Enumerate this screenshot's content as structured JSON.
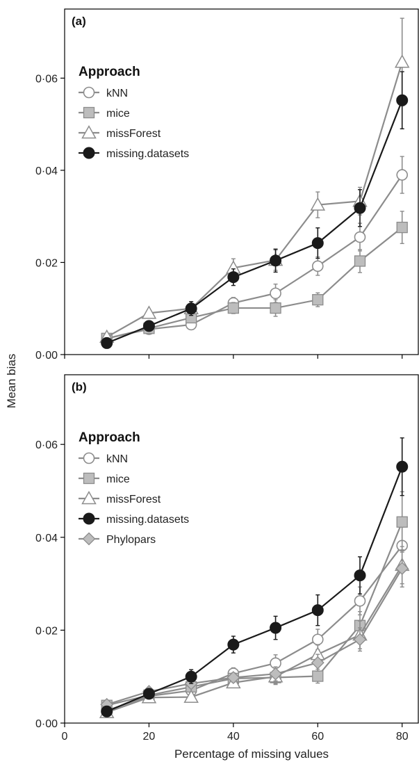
{
  "figure": {
    "ylabel": "Mean bias",
    "xlabel": "Percentage of missing values"
  },
  "chart_data": [
    {
      "type": "line",
      "panel_label": "(a)",
      "legend_title": "Approach",
      "legend_position": "top-left",
      "x": [
        10,
        20,
        30,
        40,
        50,
        60,
        70,
        80
      ],
      "xticks": [
        "0",
        "20",
        "40",
        "60",
        "80"
      ],
      "yticks": [
        "0·00",
        "0·02",
        "0·04",
        "0·06"
      ],
      "xlim": [
        0,
        84
      ],
      "ylim": [
        0,
        0.075
      ],
      "grid": false,
      "series": [
        {
          "name": "kNN",
          "marker": "circle-open",
          "color": "#8c8c8c",
          "values": [
            0.0035,
            0.0055,
            0.0065,
            0.0112,
            0.0133,
            0.0192,
            0.0255,
            0.039
          ],
          "errors": [
            0.0003,
            0.0005,
            0.0006,
            0.0012,
            0.002,
            0.002,
            0.003,
            0.004
          ]
        },
        {
          "name": "mice",
          "marker": "square",
          "color": "#8c8c8c",
          "values": [
            0.0035,
            0.0057,
            0.008,
            0.0101,
            0.0101,
            0.0119,
            0.0203,
            0.0276
          ],
          "errors": [
            0.0003,
            0.0005,
            0.0008,
            0.0012,
            0.0018,
            0.0015,
            0.0025,
            0.0035
          ]
        },
        {
          "name": "missForest",
          "marker": "triangle-open",
          "color": "#8c8c8c",
          "values": [
            0.0038,
            0.009,
            0.01,
            0.0188,
            0.0205,
            0.0325,
            0.0333,
            0.0635
          ],
          "errors": [
            0.0003,
            0.0005,
            0.0008,
            0.002,
            0.0022,
            0.0028,
            0.003,
            0.0095
          ]
        },
        {
          "name": "missing.datasets",
          "marker": "circle-filled",
          "color": "#1a1a1a",
          "values": [
            0.0025,
            0.0062,
            0.01,
            0.0168,
            0.0204,
            0.0242,
            0.0318,
            0.0552
          ],
          "errors": [
            0.0003,
            0.0005,
            0.0015,
            0.0018,
            0.0025,
            0.0033,
            0.004,
            0.0062
          ]
        }
      ]
    },
    {
      "type": "line",
      "panel_label": "(b)",
      "legend_title": "Approach",
      "legend_position": "top-left",
      "x": [
        10,
        20,
        30,
        40,
        50,
        60,
        70,
        80
      ],
      "xticks": [
        "0",
        "20",
        "40",
        "60",
        "80"
      ],
      "yticks": [
        "0·00",
        "0·02",
        "0·04",
        "0·06"
      ],
      "xlim": [
        0,
        84
      ],
      "ylim": [
        0,
        0.075
      ],
      "grid": false,
      "series": [
        {
          "name": "kNN",
          "marker": "circle-open",
          "color": "#8c8c8c",
          "values": [
            0.0027,
            0.0058,
            0.007,
            0.0107,
            0.0129,
            0.018,
            0.0263,
            0.0382
          ],
          "errors": [
            0.0003,
            0.0006,
            0.0008,
            0.0012,
            0.0018,
            0.0022,
            0.003,
            0.004
          ]
        },
        {
          "name": "mice",
          "marker": "square",
          "color": "#8c8c8c",
          "values": [
            0.0038,
            0.006,
            0.0078,
            0.0096,
            0.0098,
            0.0101,
            0.021,
            0.0433
          ],
          "errors": [
            0.0003,
            0.0006,
            0.0008,
            0.001,
            0.0015,
            0.0015,
            0.003,
            0.0065
          ]
        },
        {
          "name": "missForest",
          "marker": "triangle-open",
          "color": "#8c8c8c",
          "values": [
            0.0023,
            0.0055,
            0.0056,
            0.0087,
            0.01,
            0.0148,
            0.019,
            0.034
          ],
          "errors": [
            0.0003,
            0.0006,
            0.0008,
            0.001,
            0.0015,
            0.002,
            0.003,
            0.004
          ]
        },
        {
          "name": "missing.datasets",
          "marker": "circle-filled",
          "color": "#1a1a1a",
          "values": [
            0.0025,
            0.0063,
            0.01,
            0.0169,
            0.0205,
            0.0243,
            0.0318,
            0.0552
          ],
          "errors": [
            0.0003,
            0.0006,
            0.0015,
            0.0018,
            0.0025,
            0.0033,
            0.004,
            0.0062
          ]
        },
        {
          "name": "Phylopars",
          "marker": "diamond",
          "color": "#8c8c8c",
          "values": [
            0.004,
            0.0068,
            0.0085,
            0.0098,
            0.0106,
            0.013,
            0.018,
            0.0333
          ],
          "errors": [
            0.0003,
            0.0006,
            0.0008,
            0.001,
            0.0015,
            0.0018,
            0.0025,
            0.004
          ]
        }
      ]
    }
  ]
}
